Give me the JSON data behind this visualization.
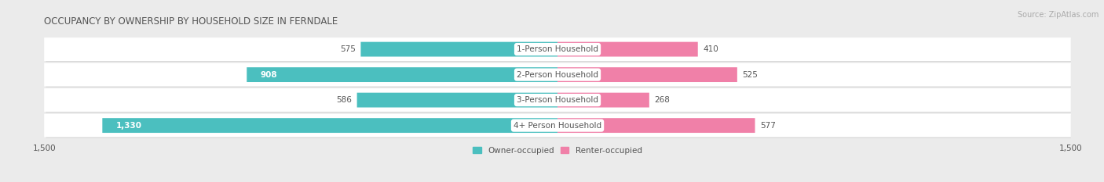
{
  "title": "OCCUPANCY BY OWNERSHIP BY HOUSEHOLD SIZE IN FERNDALE",
  "source": "Source: ZipAtlas.com",
  "categories": [
    "1-Person Household",
    "2-Person Household",
    "3-Person Household",
    "4+ Person Household"
  ],
  "owner_values": [
    575,
    908,
    586,
    1330
  ],
  "renter_values": [
    410,
    525,
    268,
    577
  ],
  "owner_color": "#4bbfbf",
  "renter_color": "#f080a8",
  "owner_color_light": "#7dd8d8",
  "renter_color_light": "#f8b0c8",
  "owner_label": "Owner-occupied",
  "renter_label": "Renter-occupied",
  "x_max": 1500,
  "bg_color": "#ebebeb",
  "row_bg_color": "#f5f5f5",
  "row_shadow_color": "#d8d8d8",
  "title_fontsize": 8.5,
  "source_fontsize": 7,
  "tick_fontsize": 7.5,
  "value_fontsize": 7.5,
  "cat_fontsize": 7.5,
  "legend_fontsize": 7.5,
  "text_color": "#555555",
  "white": "#ffffff"
}
